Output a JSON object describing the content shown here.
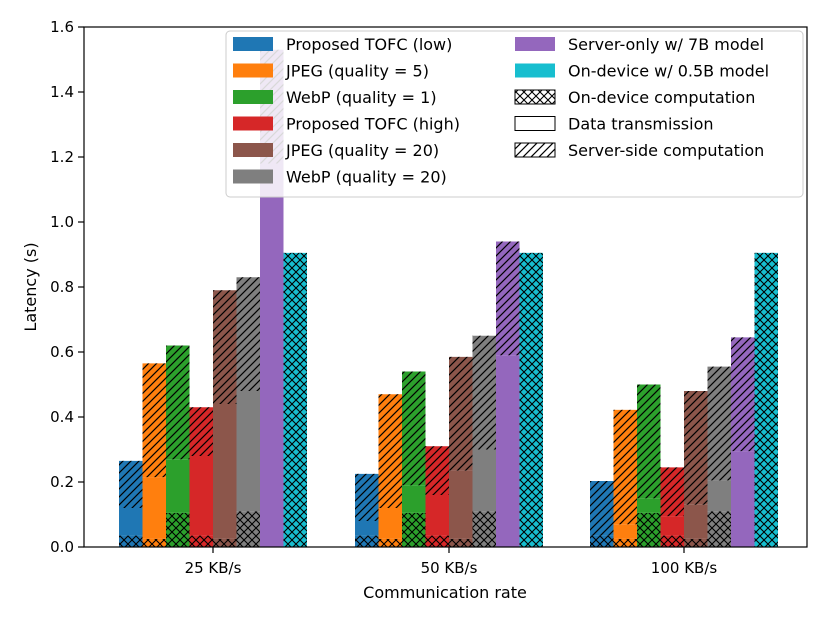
{
  "chart_data": {
    "type": "bar",
    "xlabel": "Communication rate",
    "ylabel": "Latency (s)",
    "ylim": [
      0,
      1.6
    ],
    "yticks": [
      "0.0",
      "0.2",
      "0.4",
      "0.6",
      "0.8",
      "1.0",
      "1.2",
      "1.4",
      "1.6"
    ],
    "grid": false,
    "legend_position": "top-right",
    "categories": [
      "25 KB/s",
      "50 KB/s",
      "100 KB/s"
    ],
    "component_legend": [
      {
        "name": "On-device computation",
        "pattern": "crosshatch"
      },
      {
        "name": "Data transmission",
        "pattern": "none"
      },
      {
        "name": "Server-side computation",
        "pattern": "diagonal"
      }
    ],
    "series": [
      {
        "name": "Proposed TOFC (low)",
        "color": "#1f77b4",
        "on_device": [
          0.035,
          0.035,
          0.035
        ],
        "transmission": [
          0.085,
          0.045,
          0.0
        ],
        "server": [
          0.145,
          0.145,
          0.168
        ]
      },
      {
        "name": "JPEG (quality = 5)",
        "color": "#ff7f0e",
        "on_device": [
          0.025,
          0.025,
          0.025
        ],
        "transmission": [
          0.19,
          0.095,
          0.045
        ],
        "server": [
          0.35,
          0.35,
          0.352
        ]
      },
      {
        "name": "WebP (quality = 1)",
        "color": "#2ca02c",
        "on_device": [
          0.105,
          0.105,
          0.105
        ],
        "transmission": [
          0.165,
          0.085,
          0.045
        ],
        "server": [
          0.35,
          0.35,
          0.35
        ]
      },
      {
        "name": "Proposed TOFC (high)",
        "color": "#d62728",
        "on_device": [
          0.035,
          0.035,
          0.035
        ],
        "transmission": [
          0.245,
          0.125,
          0.06
        ],
        "server": [
          0.15,
          0.15,
          0.15
        ]
      },
      {
        "name": "JPEG (quality = 20)",
        "color": "#8c564b",
        "on_device": [
          0.025,
          0.025,
          0.025
        ],
        "transmission": [
          0.415,
          0.21,
          0.105
        ],
        "server": [
          0.35,
          0.35,
          0.35
        ]
      },
      {
        "name": "WebP (quality = 20)",
        "color": "#7f7f7f",
        "on_device": [
          0.11,
          0.11,
          0.11
        ],
        "transmission": [
          0.37,
          0.19,
          0.095
        ],
        "server": [
          0.35,
          0.35,
          0.35
        ]
      },
      {
        "name": "Server-only w/ 7B model",
        "color": "#9467bd",
        "on_device": [
          0.0,
          0.0,
          0.0
        ],
        "transmission": [
          1.18,
          0.59,
          0.295
        ],
        "server": [
          0.35,
          0.35,
          0.35
        ]
      },
      {
        "name": "On-device w/ 0.5B model",
        "color": "#17becf",
        "on_device": [
          0.905,
          0.905,
          0.905
        ],
        "transmission": [
          0.0,
          0.0,
          0.0
        ],
        "server": [
          0.0,
          0.0,
          0.0
        ]
      }
    ]
  }
}
